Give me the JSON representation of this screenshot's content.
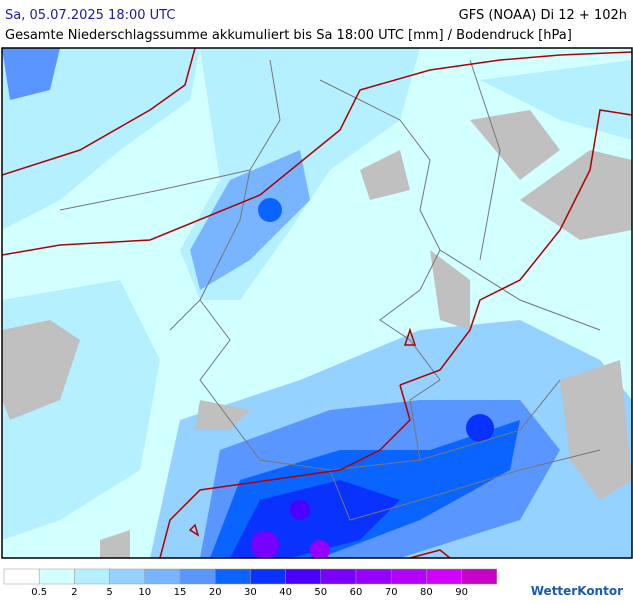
{
  "header": {
    "datetime": "Sa, 05.07.2025 18:00 UTC",
    "model": "GFS (NOAA) Di 12 + 102h",
    "subtitle": "Gesamte Niederschlagssumme akkumuliert bis Sa 18:00 UTC [mm] / Bodendruck [hPa]"
  },
  "legend": {
    "labels": [
      "0.5",
      "2",
      "5",
      "10",
      "15",
      "20",
      "30",
      "40",
      "50",
      "60",
      "70",
      "80",
      "90"
    ],
    "colors": [
      "#ffffff",
      "#d2ffff",
      "#b4f0ff",
      "#96d2ff",
      "#78b4ff",
      "#5a96ff",
      "#0a64ff",
      "#0a32ff",
      "#4b00ff",
      "#7800ff",
      "#9600ff",
      "#b400ff",
      "#d200ff",
      "#c800c8"
    ]
  },
  "logo": "WetterKontor"
}
